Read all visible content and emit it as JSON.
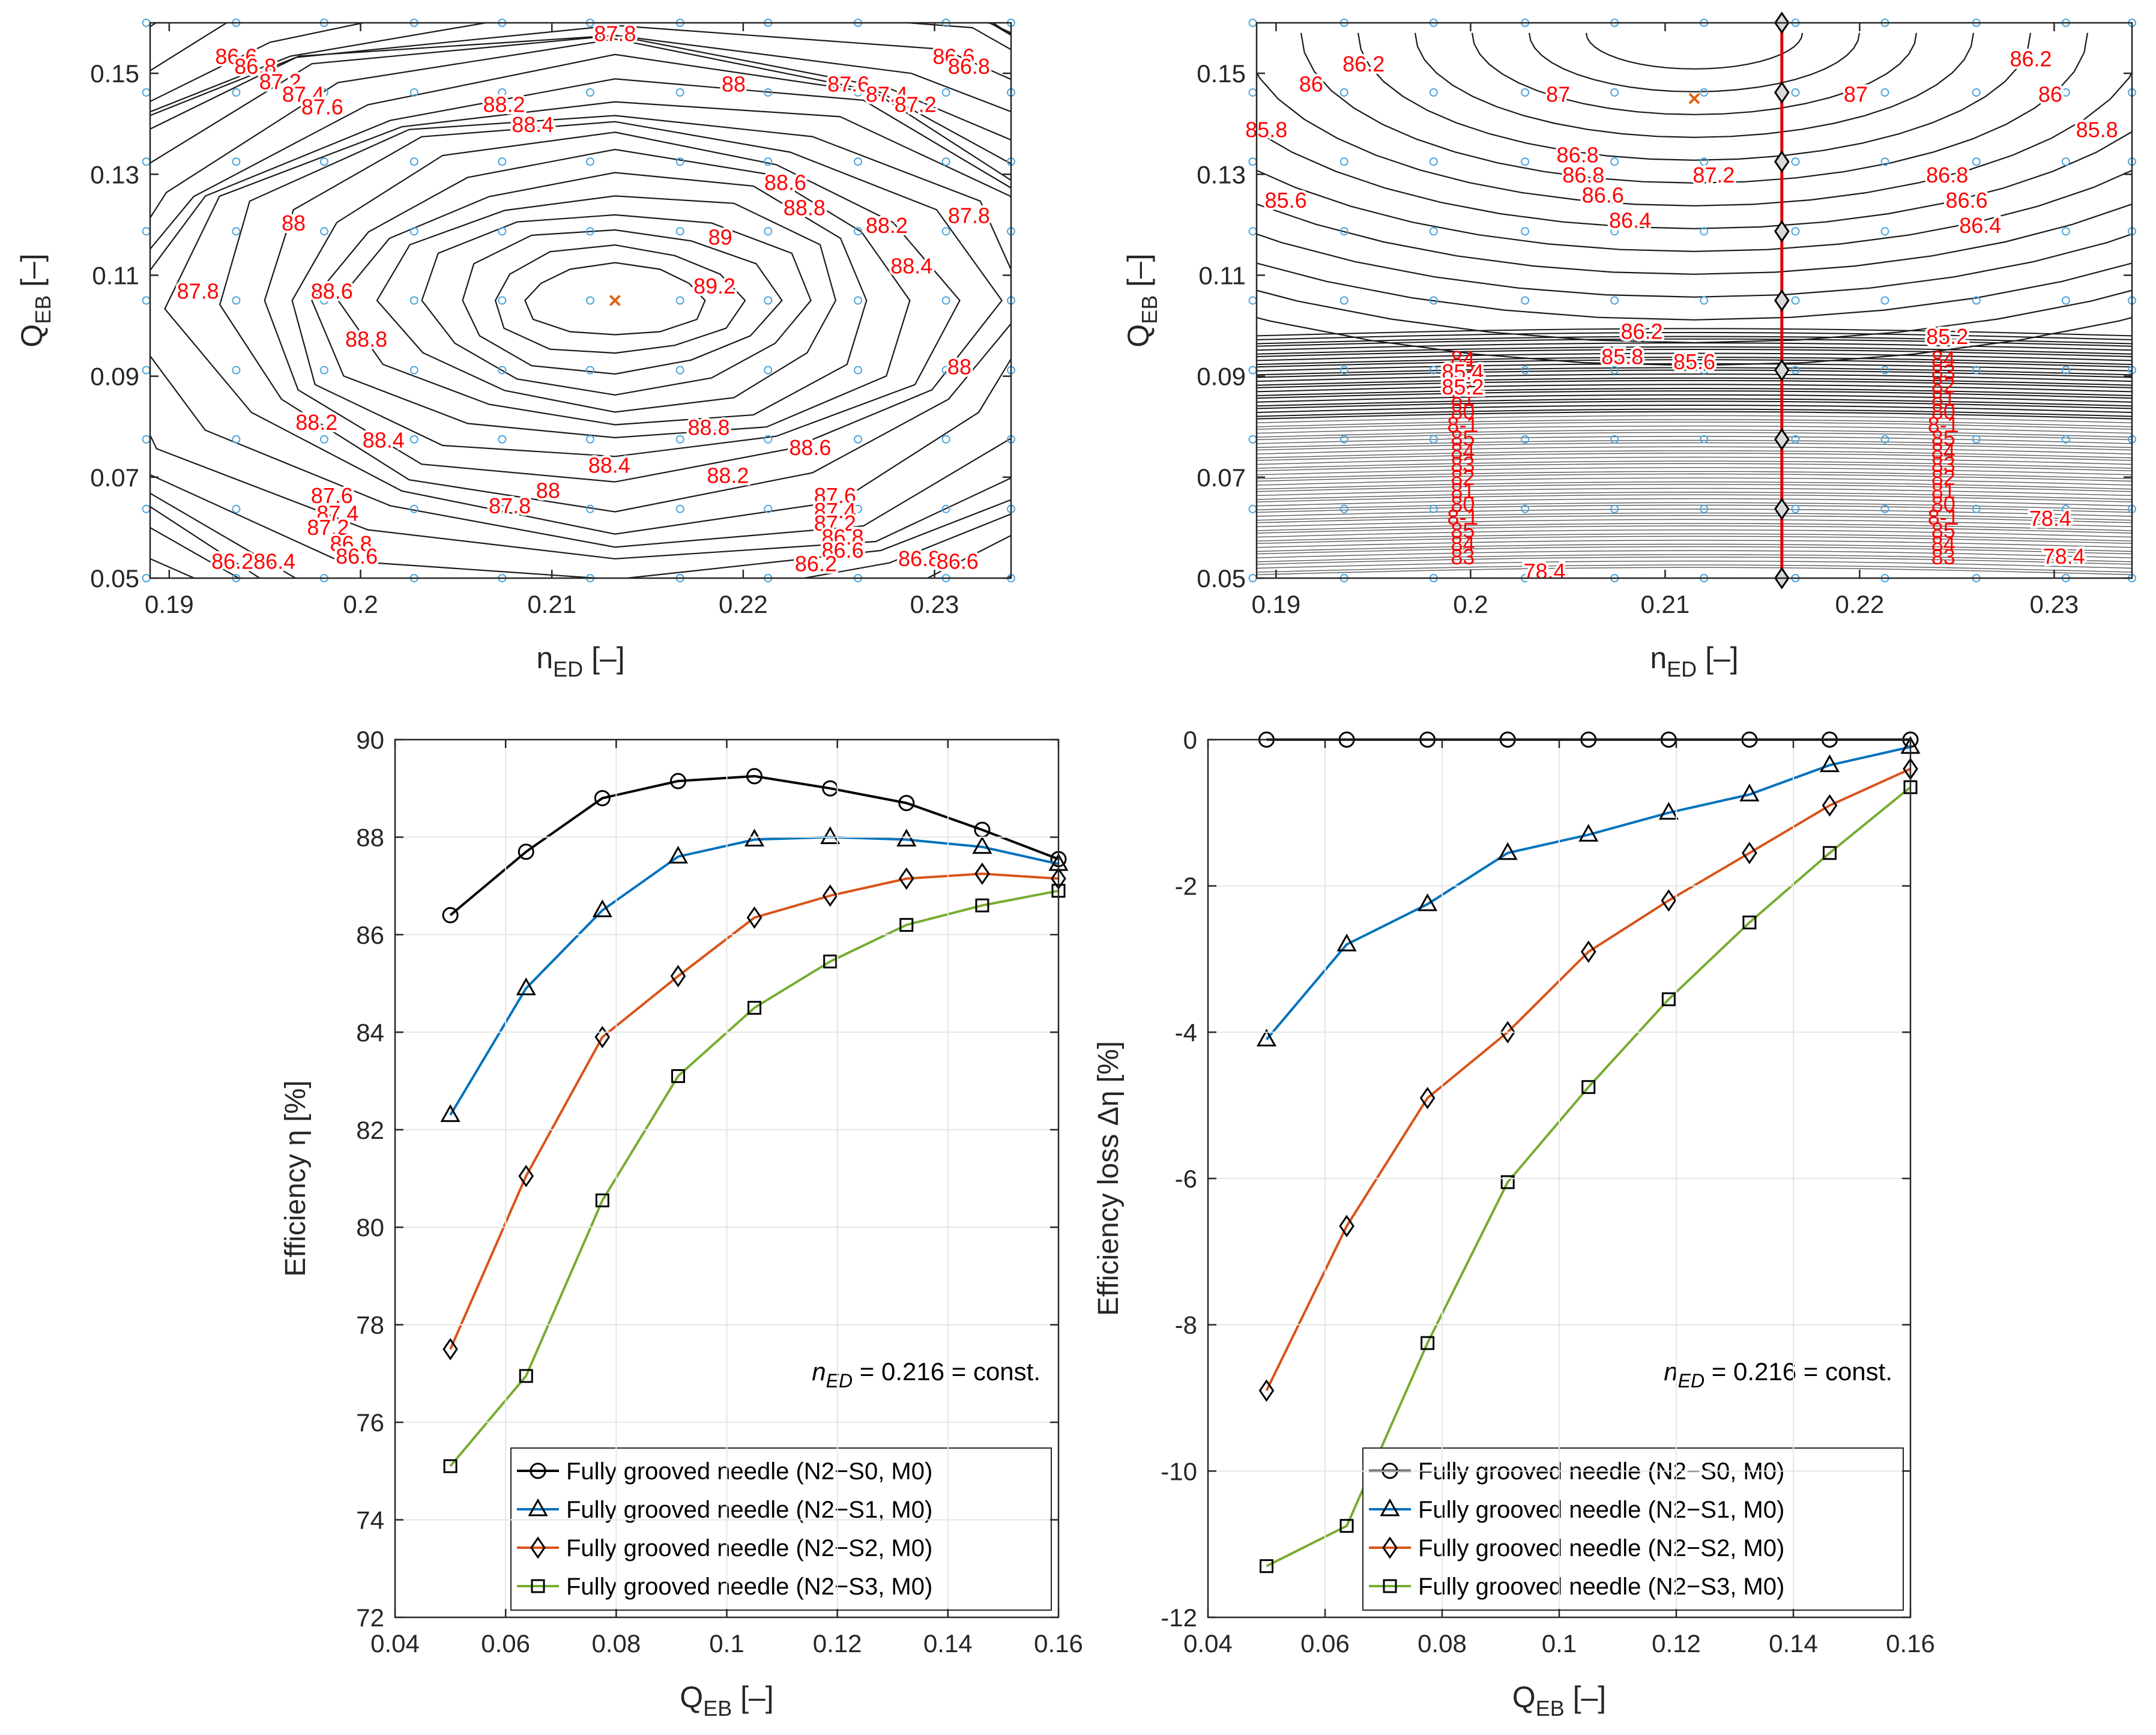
{
  "chart_data": [
    {
      "id": "top-left",
      "type": "contour",
      "xlabel": "n_ED [–]",
      "ylabel": "Q_EB [–]",
      "xlim": [
        0.189,
        0.234
      ],
      "ylim": [
        0.05,
        0.16
      ],
      "xticks": [
        "0.19",
        "0.2",
        "0.21",
        "0.22",
        "0.23"
      ],
      "yticks": [
        "0.05",
        "0.07",
        "0.09",
        "0.11",
        "0.13",
        "0.15"
      ],
      "optimum": {
        "x": 0.2133,
        "y": 0.105
      },
      "peak_value": 89.25,
      "contour_labels": [
        {
          "text": "87.8",
          "x": 0.2133,
          "y": 0.1575
        },
        {
          "text": "86.6",
          "x": 0.1935,
          "y": 0.153
        },
        {
          "text": "86.8",
          "x": 0.1945,
          "y": 0.151
        },
        {
          "text": "87.2",
          "x": 0.1958,
          "y": 0.148
        },
        {
          "text": "87.4",
          "x": 0.197,
          "y": 0.1455
        },
        {
          "text": "87.6",
          "x": 0.198,
          "y": 0.143
        },
        {
          "text": "88",
          "x": 0.2195,
          "y": 0.1475
        },
        {
          "text": "88.2",
          "x": 0.2075,
          "y": 0.1435
        },
        {
          "text": "88.4",
          "x": 0.209,
          "y": 0.1395
        },
        {
          "text": "87.6",
          "x": 0.2255,
          "y": 0.1475
        },
        {
          "text": "87.4",
          "x": 0.2275,
          "y": 0.1455
        },
        {
          "text": "87.2",
          "x": 0.229,
          "y": 0.1435
        },
        {
          "text": "86.6",
          "x": 0.231,
          "y": 0.153
        },
        {
          "text": "86.8",
          "x": 0.2318,
          "y": 0.151
        },
        {
          "text": "88.6",
          "x": 0.2222,
          "y": 0.128
        },
        {
          "text": "88.8",
          "x": 0.2232,
          "y": 0.123
        },
        {
          "text": "89",
          "x": 0.2188,
          "y": 0.1172
        },
        {
          "text": "89.2",
          "x": 0.2185,
          "y": 0.1075
        },
        {
          "text": "88",
          "x": 0.1965,
          "y": 0.12
        },
        {
          "text": "87.8",
          "x": 0.1915,
          "y": 0.1065
        },
        {
          "text": "88.6",
          "x": 0.1985,
          "y": 0.1065
        },
        {
          "text": "88.8",
          "x": 0.2003,
          "y": 0.097
        },
        {
          "text": "88.2",
          "x": 0.2275,
          "y": 0.1195
        },
        {
          "text": "88.4",
          "x": 0.2288,
          "y": 0.1115
        },
        {
          "text": "87.8",
          "x": 0.2318,
          "y": 0.1215
        },
        {
          "text": "88",
          "x": 0.2313,
          "y": 0.0915
        },
        {
          "text": "88.2",
          "x": 0.1977,
          "y": 0.0805
        },
        {
          "text": "88.4",
          "x": 0.2012,
          "y": 0.077
        },
        {
          "text": "88.8",
          "x": 0.2182,
          "y": 0.0795
        },
        {
          "text": "88.6",
          "x": 0.2235,
          "y": 0.0755
        },
        {
          "text": "88.4",
          "x": 0.213,
          "y": 0.072
        },
        {
          "text": "88.2",
          "x": 0.2192,
          "y": 0.07
        },
        {
          "text": "88",
          "x": 0.2098,
          "y": 0.067
        },
        {
          "text": "87.8",
          "x": 0.2078,
          "y": 0.064
        },
        {
          "text": "87.6",
          "x": 0.1985,
          "y": 0.066
        },
        {
          "text": "87.4",
          "x": 0.1988,
          "y": 0.0625
        },
        {
          "text": "87.2",
          "x": 0.1983,
          "y": 0.0597
        },
        {
          "text": "86.8",
          "x": 0.1995,
          "y": 0.0565
        },
        {
          "text": "86.6",
          "x": 0.1998,
          "y": 0.054
        },
        {
          "text": "86.2",
          "x": 0.1933,
          "y": 0.053
        },
        {
          "text": "86.4",
          "x": 0.1955,
          "y": 0.053
        },
        {
          "text": "87.6",
          "x": 0.2248,
          "y": 0.066
        },
        {
          "text": "87.4",
          "x": 0.2248,
          "y": 0.063
        },
        {
          "text": "87.2",
          "x": 0.2248,
          "y": 0.0605
        },
        {
          "text": "86.8",
          "x": 0.2252,
          "y": 0.0578
        },
        {
          "text": "86.6",
          "x": 0.2252,
          "y": 0.0552
        },
        {
          "text": "86.2",
          "x": 0.2238,
          "y": 0.0525
        },
        {
          "text": "86.8",
          "x": 0.2292,
          "y": 0.0535
        },
        {
          "text": "86.6",
          "x": 0.2312,
          "y": 0.053
        }
      ]
    },
    {
      "id": "top-right",
      "type": "contour",
      "xlabel": "n_ED [–]",
      "ylabel": "Q_EB [–]",
      "xlim": [
        0.189,
        0.234
      ],
      "ylim": [
        0.05,
        0.16
      ],
      "xticks": [
        "0.19",
        "0.2",
        "0.21",
        "0.22",
        "0.23"
      ],
      "yticks": [
        "0.05",
        "0.07",
        "0.09",
        "0.11",
        "0.13",
        "0.15"
      ],
      "optimum": {
        "x": 0.2115,
        "y": 0.145
      },
      "section_line_x": 0.216,
      "section_points_y": [
        0.05,
        0.0637,
        0.0775,
        0.0912,
        0.105,
        0.1187,
        0.1325,
        0.1462,
        0.16
      ],
      "contour_labels": [
        {
          "text": "86.2",
          "x": 0.1945,
          "y": 0.1515
        },
        {
          "text": "86",
          "x": 0.1918,
          "y": 0.1475
        },
        {
          "text": "85.8",
          "x": 0.1895,
          "y": 0.1385
        },
        {
          "text": "85.6",
          "x": 0.1905,
          "y": 0.1245
        },
        {
          "text": "87",
          "x": 0.2045,
          "y": 0.1455
        },
        {
          "text": "86.8",
          "x": 0.2055,
          "y": 0.1335
        },
        {
          "text": "86.6",
          "x": 0.2068,
          "y": 0.1255
        },
        {
          "text": "86.8",
          "x": 0.2058,
          "y": 0.1295
        },
        {
          "text": "86.4",
          "x": 0.2082,
          "y": 0.1205
        },
        {
          "text": "87.2",
          "x": 0.2125,
          "y": 0.1295
        },
        {
          "text": "87",
          "x": 0.2198,
          "y": 0.1455
        },
        {
          "text": "86.8",
          "x": 0.2245,
          "y": 0.1295
        },
        {
          "text": "86.6",
          "x": 0.2255,
          "y": 0.1245
        },
        {
          "text": "86.4",
          "x": 0.2262,
          "y": 0.1195
        },
        {
          "text": "86.2",
          "x": 0.2288,
          "y": 0.1525
        },
        {
          "text": "86",
          "x": 0.2298,
          "y": 0.1455
        },
        {
          "text": "85.8",
          "x": 0.2322,
          "y": 0.1385
        },
        {
          "text": "86.2",
          "x": 0.2088,
          "y": 0.0985
        },
        {
          "text": "85.8",
          "x": 0.2078,
          "y": 0.0935
        },
        {
          "text": "85.6",
          "x": 0.2115,
          "y": 0.0925
        },
        {
          "text": "85.4",
          "x": 0.1996,
          "y": 0.0905
        },
        {
          "text": "85.2",
          "x": 0.1996,
          "y": 0.0875
        },
        {
          "text": "85.2",
          "x": 0.2245,
          "y": 0.0975
        },
        {
          "text": "78.4",
          "x": 0.2038,
          "y": 0.051
        },
        {
          "text": "78.4",
          "x": 0.2298,
          "y": 0.0615
        },
        {
          "text": "78.4",
          "x": 0.2305,
          "y": 0.054
        }
      ]
    },
    {
      "id": "bottom-left",
      "type": "line",
      "xlabel": "Q_EB [–]",
      "ylabel": "Efficiency η [%]",
      "xlim": [
        0.04,
        0.16
      ],
      "ylim": [
        72,
        90
      ],
      "xticks": [
        "0.04",
        "0.06",
        "0.08",
        "0.1",
        "0.12",
        "0.14",
        "0.16"
      ],
      "yticks": [
        "72",
        "74",
        "76",
        "78",
        "80",
        "82",
        "84",
        "86",
        "88",
        "90"
      ],
      "annotation": "n_ED = 0.216 = const.",
      "x": [
        0.05,
        0.0637,
        0.0775,
        0.0912,
        0.105,
        0.1187,
        0.1325,
        0.1462,
        0.16
      ],
      "series": [
        {
          "name": "Fully grooved needle (N2−S0, M0)",
          "marker": "circle",
          "color": "#000000",
          "values": [
            86.4,
            87.7,
            88.8,
            89.15,
            89.25,
            89.0,
            88.7,
            88.15,
            87.55
          ]
        },
        {
          "name": "Fully grooved needle (N2−S1, M0)",
          "marker": "triangle",
          "color": "#0072BD",
          "values": [
            82.3,
            84.9,
            86.5,
            87.6,
            87.95,
            88.0,
            87.95,
            87.8,
            87.45
          ]
        },
        {
          "name": "Fully grooved needle (N2−S2, M0)",
          "marker": "diamond",
          "color": "#D95319",
          "values": [
            77.5,
            81.05,
            83.9,
            85.15,
            86.35,
            86.8,
            87.15,
            87.25,
            87.15
          ]
        },
        {
          "name": "Fully grooved needle (N2−S3, M0)",
          "marker": "square",
          "color": "#77AC30",
          "values": [
            75.1,
            76.95,
            80.55,
            83.1,
            84.5,
            85.45,
            86.2,
            86.6,
            86.9
          ]
        }
      ]
    },
    {
      "id": "bottom-right",
      "type": "line",
      "xlabel": "Q_EB [–]",
      "ylabel": "Efficiency loss Δη [%]",
      "xlim": [
        0.04,
        0.16
      ],
      "ylim": [
        -12,
        0
      ],
      "xticks": [
        "0.04",
        "0.06",
        "0.08",
        "0.1",
        "0.12",
        "0.14",
        "0.16"
      ],
      "yticks": [
        "-12",
        "-10",
        "-8",
        "-6",
        "-4",
        "-2",
        "0"
      ],
      "annotation": "n_ED = 0.216 = const.",
      "x": [
        0.05,
        0.0637,
        0.0775,
        0.0912,
        0.105,
        0.1187,
        0.1325,
        0.1462,
        0.16
      ],
      "series": [
        {
          "name": "Fully grooved needle (N2−S0, M0)",
          "marker": "circle",
          "color": "#000000",
          "values": [
            0,
            0,
            0,
            0,
            0,
            0,
            0,
            0,
            0
          ]
        },
        {
          "name": "Fully grooved needle (N2−S1, M0)",
          "marker": "triangle",
          "color": "#0072BD",
          "values": [
            -4.1,
            -2.8,
            -2.25,
            -1.55,
            -1.3,
            -1.0,
            -0.75,
            -0.35,
            -0.1
          ]
        },
        {
          "name": "Fully grooved needle (N2−S2, M0)",
          "marker": "diamond",
          "color": "#D95319",
          "values": [
            -8.9,
            -6.65,
            -4.9,
            -4.0,
            -2.9,
            -2.2,
            -1.55,
            -0.9,
            -0.4
          ]
        },
        {
          "name": "Fully grooved needle (N2−S3, M0)",
          "marker": "square",
          "color": "#77AC30",
          "values": [
            -11.3,
            -10.75,
            -8.25,
            -6.05,
            -4.75,
            -3.55,
            -2.5,
            -1.55,
            -0.65
          ]
        }
      ]
    }
  ]
}
